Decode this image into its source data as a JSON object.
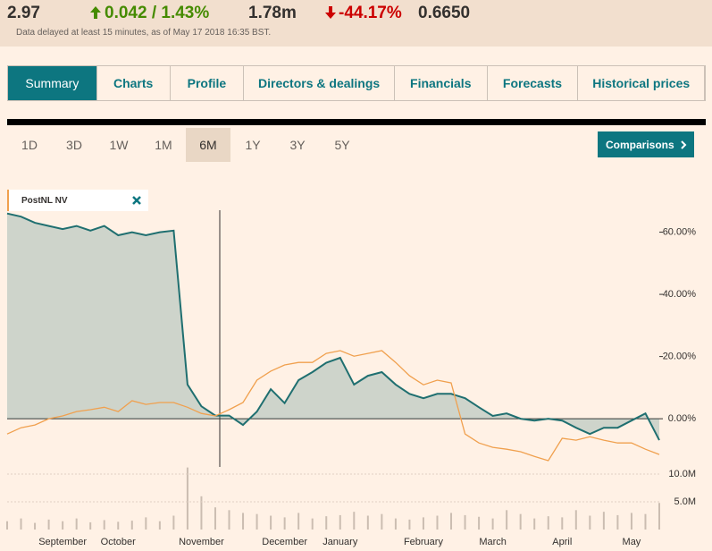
{
  "quote": {
    "price": "2.97",
    "change": "0.042 / 1.43%",
    "volume": "1.78m",
    "ytd_change": "-44.17%",
    "beta": "0.6650",
    "note": "Data delayed at least 15 minutes, as of May 17 2018 16:35 BST."
  },
  "tabs": [
    "Summary",
    "Charts",
    "Profile",
    "Directors & dealings",
    "Financials",
    "Forecasts",
    "Historical prices"
  ],
  "periods": [
    "1D",
    "3D",
    "1W",
    "1M",
    "6M",
    "1Y",
    "3Y",
    "5Y"
  ],
  "comparisons": "Comparisons",
  "chart_data": {
    "type": "line",
    "legend": "PostNL NV",
    "categories": [
      null,
      null,
      null,
      null,
      "September",
      null,
      null,
      null,
      "October",
      null,
      null,
      null,
      null,
      null,
      "November",
      null,
      null,
      null,
      null,
      null,
      "December",
      null,
      null,
      null,
      "January",
      null,
      null,
      null,
      null,
      null,
      "February",
      null,
      null,
      null,
      null,
      "March",
      null,
      null,
      null,
      null,
      "April",
      null,
      null,
      null,
      null,
      "May",
      null,
      null
    ],
    "series": [
      {
        "name": "PostNL NV",
        "color": "#1f6f70",
        "values": [
          66,
          65,
          63,
          62,
          61,
          62,
          60.5,
          62,
          59,
          60,
          59,
          60,
          60.5,
          11,
          4,
          1,
          1,
          -2,
          2.3,
          9.5,
          5,
          12.4,
          15,
          18,
          19.6,
          11,
          13.8,
          15,
          11,
          8,
          6.6,
          8,
          8,
          6.6,
          3.7,
          0.9,
          1.7,
          0,
          -0.6,
          0,
          -0.6,
          -2.9,
          -4.9,
          -2.9,
          -2.9,
          -0.6,
          1.7,
          -6.9
        ]
      },
      {
        "color": "#f0a04e",
        "values": [
          -4.9,
          -2.9,
          -2,
          0,
          0.9,
          2.3,
          2.9,
          3.7,
          2.3,
          5.8,
          4.6,
          5.2,
          5.2,
          3.7,
          1.7,
          0.9,
          2.9,
          5.2,
          12.4,
          15.3,
          17.3,
          18.1,
          18.1,
          21,
          21.9,
          20.1,
          21,
          21.9,
          18.1,
          13.8,
          10.9,
          12.4,
          11.5,
          -4.9,
          -7.8,
          -9.2,
          -9.8,
          -10.6,
          -12.1,
          -13.5,
          -6.3,
          -6.9,
          -5.8,
          -6.9,
          -7.8,
          -7.8,
          -9.8,
          -11.5
        ]
      }
    ],
    "ylim": [
      -15.5,
      66.2
    ],
    "yticks": [
      {
        "value": 0,
        "label": "0.00%"
      },
      {
        "value": 20,
        "label": "20.00%"
      },
      {
        "value": 40,
        "label": "40.00%"
      },
      {
        "value": 60,
        "label": "60.00%"
      }
    ],
    "volume": {
      "color": "#cbbdb1",
      "values": [
        1.5,
        2,
        1.2,
        1.8,
        1.5,
        2,
        1.3,
        1.7,
        1.4,
        1.6,
        2.2,
        1.5,
        2.5,
        11.2,
        6,
        4,
        3.5,
        3,
        2.8,
        2.5,
        2.2,
        3,
        2,
        2.4,
        2.6,
        3.2,
        2.5,
        2.8,
        2,
        1.8,
        2.2,
        2.5,
        3,
        2.6,
        2.3,
        2,
        3.5,
        2.8,
        2,
        2.4,
        2.2,
        3.5,
        2.5,
        3.2,
        2.6,
        3,
        2.8,
        4.8
      ],
      "ylim": [
        0,
        11.3
      ],
      "yticks": [
        {
          "value": 5,
          "label": "5.0M"
        },
        {
          "value": 10,
          "label": "10.0M"
        }
      ]
    }
  }
}
